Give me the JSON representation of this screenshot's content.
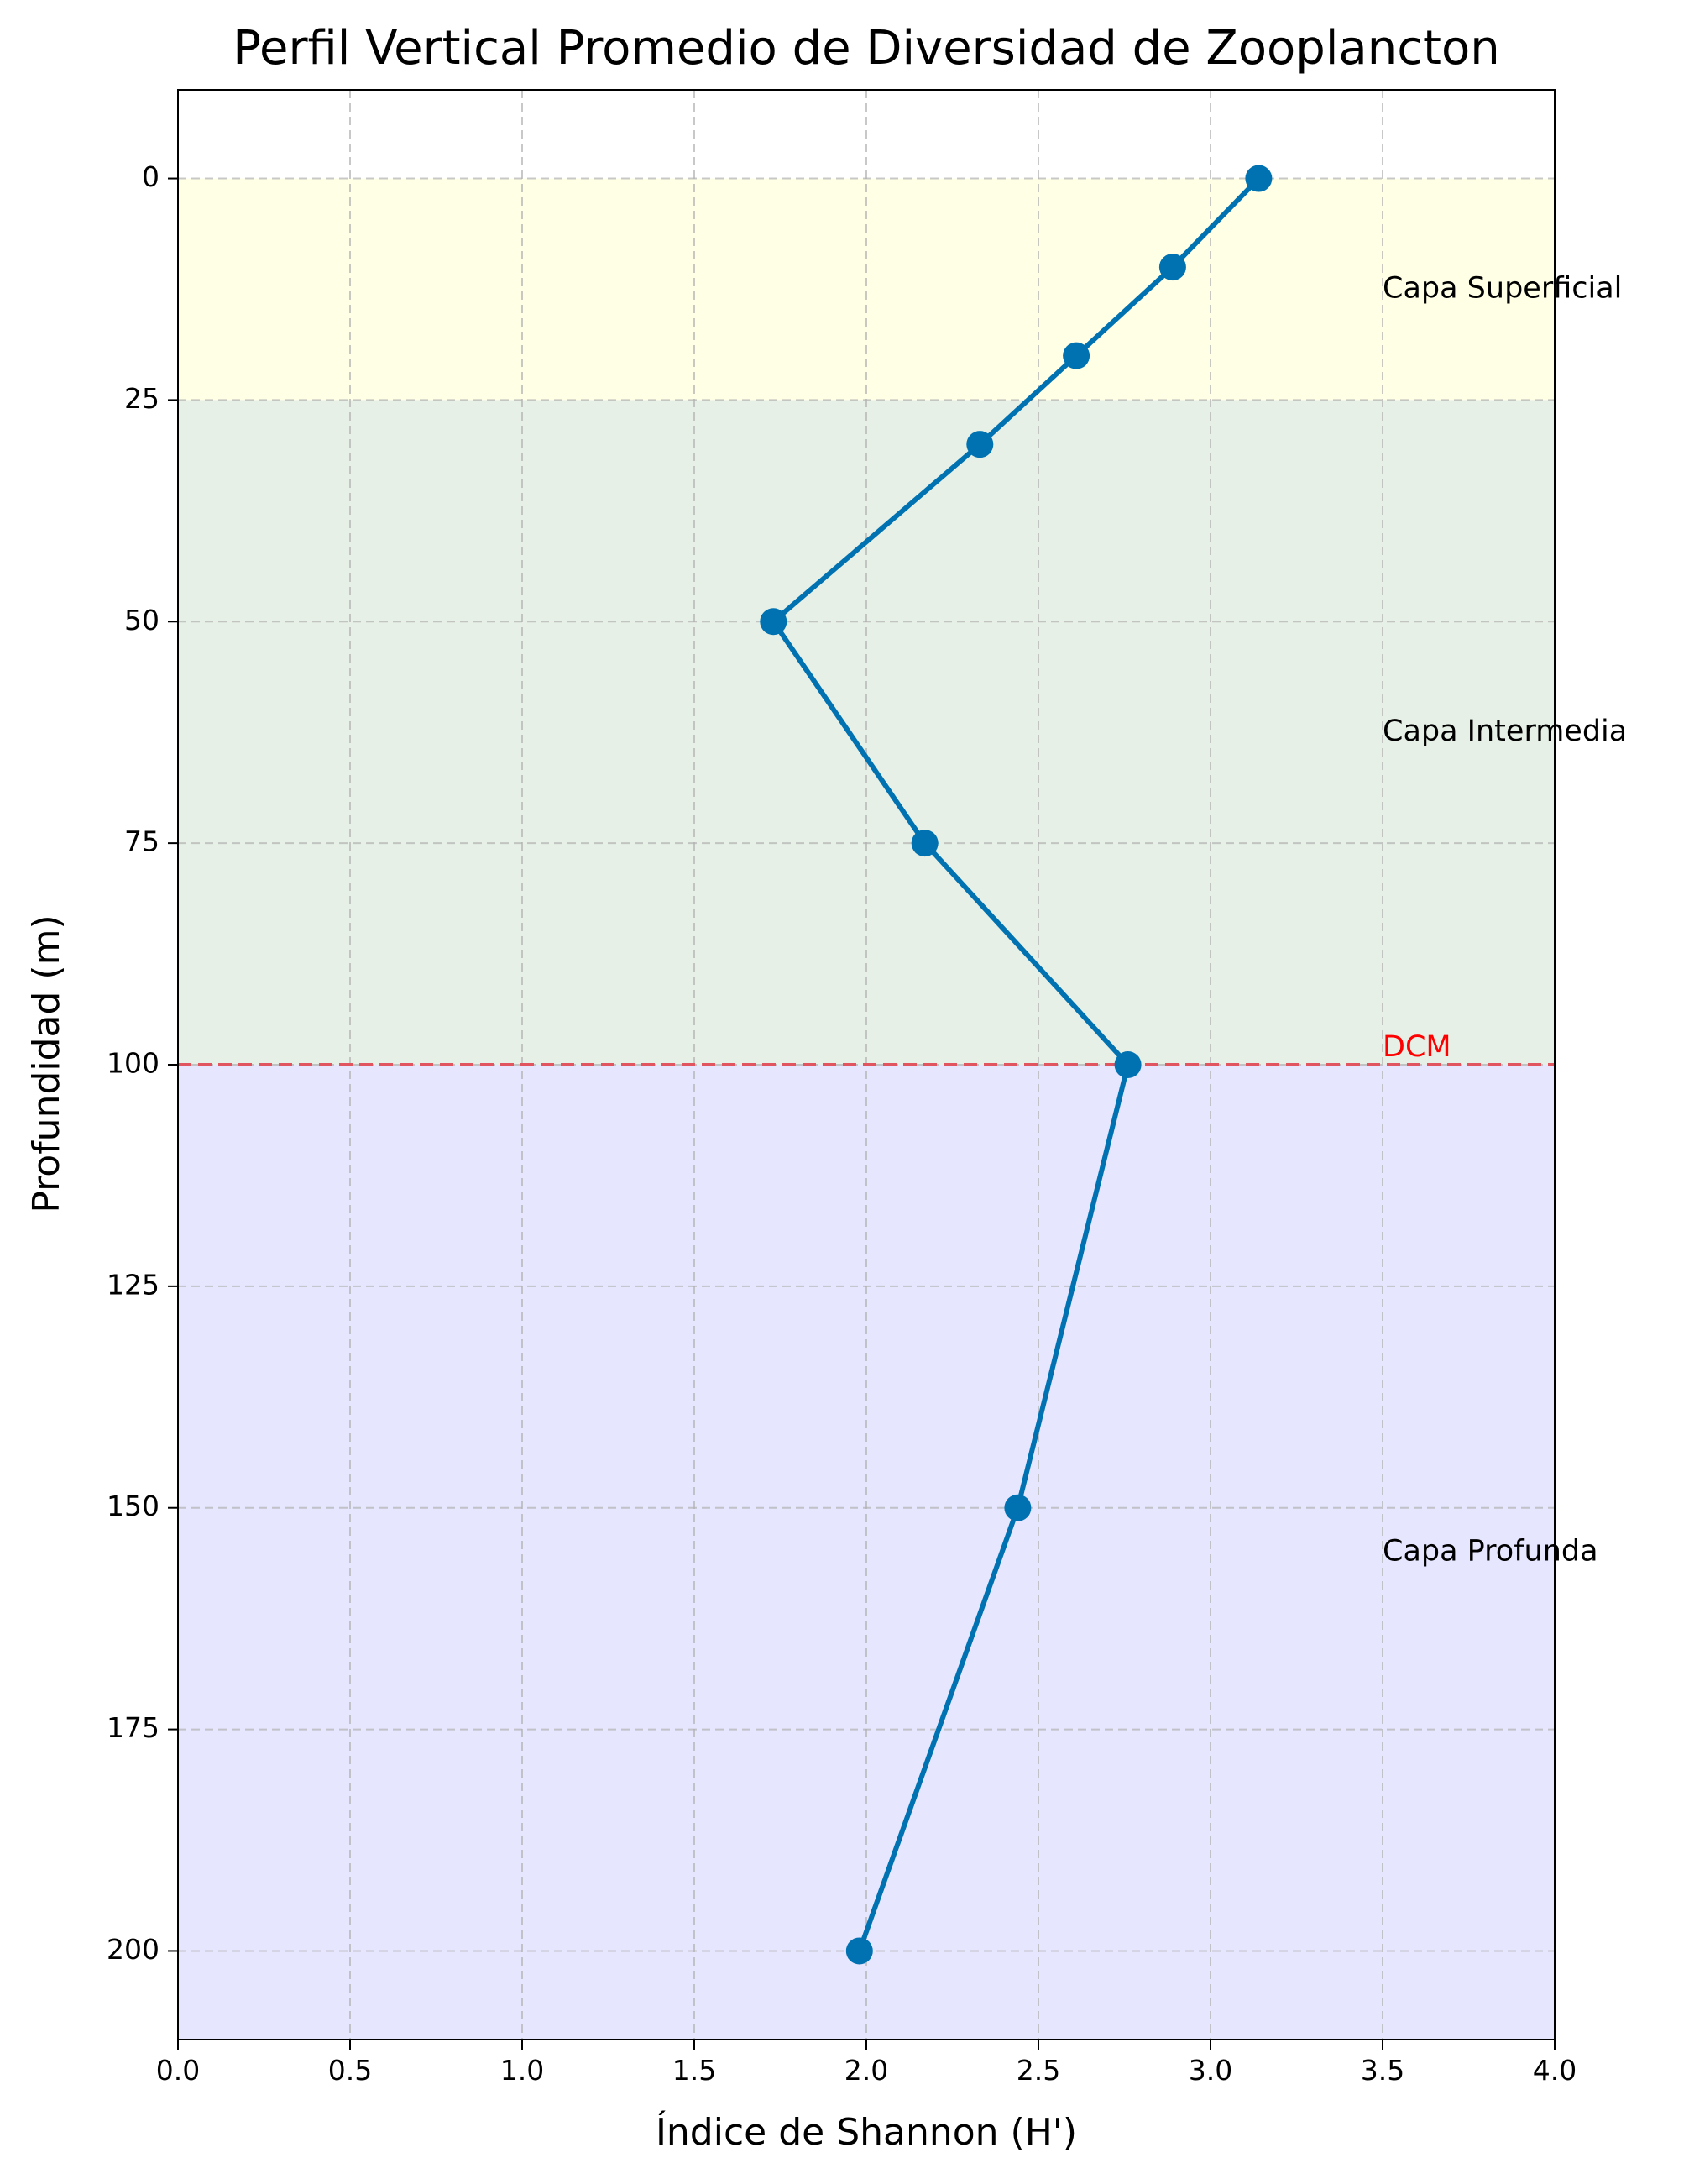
{
  "chart_data": {
    "type": "line",
    "title": "Perfil Vertical Promedio de Diversidad de Zooplancton",
    "xlabel": "Índice de Shannon (H')",
    "ylabel": "Profundidad (m)",
    "xlim": [
      0.0,
      4.0
    ],
    "ylim": [
      210,
      -10
    ],
    "y_inverted": true,
    "grid": true,
    "legend": "none",
    "x_ticks": [
      {
        "value": 0.0,
        "label": "0.0"
      },
      {
        "value": 0.5,
        "label": "0.5"
      },
      {
        "value": 1.0,
        "label": "1.0"
      },
      {
        "value": 1.5,
        "label": "1.5"
      },
      {
        "value": 2.0,
        "label": "2.0"
      },
      {
        "value": 2.5,
        "label": "2.5"
      },
      {
        "value": 3.0,
        "label": "3.0"
      },
      {
        "value": 3.5,
        "label": "3.5"
      },
      {
        "value": 4.0,
        "label": "4.0"
      }
    ],
    "y_ticks": [
      {
        "value": 0,
        "label": "0"
      },
      {
        "value": 25,
        "label": "25"
      },
      {
        "value": 50,
        "label": "50"
      },
      {
        "value": 75,
        "label": "75"
      },
      {
        "value": 100,
        "label": "100"
      },
      {
        "value": 125,
        "label": "125"
      },
      {
        "value": 150,
        "label": "150"
      },
      {
        "value": 175,
        "label": "175"
      },
      {
        "value": 200,
        "label": "200"
      }
    ],
    "series": [
      {
        "color": "#0072b2",
        "points": [
          {
            "x": 3.14,
            "y": 0
          },
          {
            "x": 2.89,
            "y": 10
          },
          {
            "x": 2.61,
            "y": 20
          },
          {
            "x": 2.33,
            "y": 30
          },
          {
            "x": 1.73,
            "y": 50
          },
          {
            "x": 2.17,
            "y": 75
          },
          {
            "x": 2.76,
            "y": 100
          },
          {
            "x": 2.44,
            "y": 150
          },
          {
            "x": 1.98,
            "y": 200
          }
        ]
      }
    ],
    "zones": [
      {
        "label": "Capa Superficial",
        "from": 0,
        "to": 25,
        "color": "#ffffe6",
        "label_x": 3.5,
        "label_y": 12.5
      },
      {
        "label": "Capa Intermedia",
        "from": 25,
        "to": 100,
        "color": "#e6f0e6",
        "label_x": 3.5,
        "label_y": 62.5
      },
      {
        "label": "Capa Profunda",
        "from": 100,
        "to": 210,
        "color": "#e6e6ff",
        "label_x": 3.5,
        "label_y": 155
      }
    ],
    "reference_line": {
      "label": "DCM",
      "y": 100,
      "color": "#e05560",
      "label_color": "#ff0000",
      "label_x": 3.5
    }
  }
}
